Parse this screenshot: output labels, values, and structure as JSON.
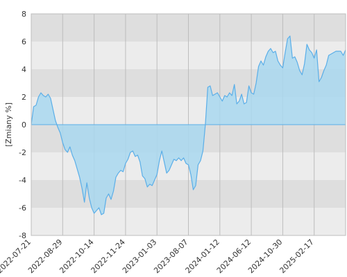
{
  "chart_data": {
    "type": "area",
    "title": "",
    "xlabel": "",
    "ylabel": "[Zmiany %]",
    "ylim": [
      -8,
      8
    ],
    "yticks": [
      8,
      6,
      4,
      2,
      0,
      -2,
      -4,
      -6,
      -8
    ],
    "grid": true,
    "x_tick_labels": [
      "2022-07-21",
      "2022-08-29",
      "2022-10-14",
      "2022-11-24",
      "2023-01-03",
      "2023-08-07",
      "2024-01-12",
      "2024-06-12",
      "2024-10-30",
      "2025-02-17"
    ],
    "series": [
      {
        "values": [
          0.0,
          1.3,
          1.4,
          2.0,
          2.3,
          2.1,
          2.0,
          2.2,
          1.9,
          1.1,
          0.3,
          -0.2,
          -0.6,
          -1.3,
          -1.8,
          -2.0,
          -1.6,
          -2.2,
          -2.6,
          -3.2,
          -3.8,
          -4.6,
          -5.6,
          -4.2,
          -5.3,
          -6.0,
          -6.4,
          -6.2,
          -6.0,
          -6.5,
          -6.4,
          -5.3,
          -5.0,
          -5.4,
          -4.8,
          -3.8,
          -3.5,
          -3.3,
          -3.4,
          -2.8,
          -2.5,
          -2.0,
          -1.9,
          -2.3,
          -2.2,
          -2.7,
          -3.7,
          -3.9,
          -4.5,
          -4.3,
          -4.4,
          -4.0,
          -3.6,
          -2.6,
          -1.9,
          -2.7,
          -3.5,
          -3.3,
          -2.9,
          -2.5,
          -2.6,
          -2.4,
          -2.6,
          -2.4,
          -2.8,
          -2.9,
          -3.6,
          -4.7,
          -4.4,
          -2.9,
          -2.6,
          -1.9,
          0.0,
          2.7,
          2.8,
          2.1,
          2.2,
          2.3,
          2.0,
          1.7,
          2.1,
          2.0,
          2.3,
          2.1,
          2.9,
          1.5,
          1.7,
          2.2,
          1.5,
          1.6,
          2.8,
          2.3,
          2.2,
          3.0,
          4.2,
          4.6,
          4.3,
          4.9,
          5.3,
          5.5,
          5.2,
          5.3,
          4.6,
          4.3,
          4.1,
          5.2,
          6.2,
          6.4,
          4.8,
          4.9,
          4.5,
          3.9,
          3.6,
          4.4,
          5.8,
          5.4,
          5.2,
          4.8,
          5.4,
          3.1,
          3.4,
          3.9,
          4.3,
          5.0,
          5.1,
          5.2,
          5.3,
          5.3,
          5.3,
          5.0,
          5.4
        ]
      }
    ],
    "colors": {
      "line": "#5aaee8",
      "fill": "#a9d8f0",
      "band_dark": "#dedede",
      "band_light": "#ececec",
      "grid_vertical": "#bdbdbd",
      "plot_border": "#bdbdbd"
    }
  }
}
